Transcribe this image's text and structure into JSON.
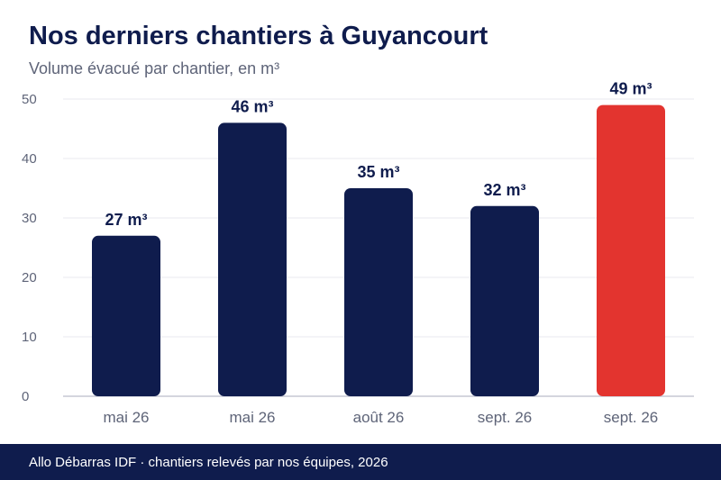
{
  "title": "Nos derniers chantiers à Guyancourt",
  "subtitle": "Volume évacué par chantier, en m³",
  "footer": "Allo Débarras IDF · chantiers relevés par nos équipes, 2026",
  "colors": {
    "primary": "#0f1c4d",
    "highlight": "#e3342f",
    "grid": "#e9e9ef",
    "axis": "#c5c7d4",
    "tick_text": "#5e6478"
  },
  "chart_data": {
    "type": "bar",
    "categories": [
      "mai 26",
      "mai 26",
      "août 26",
      "sept. 26",
      "sept. 26"
    ],
    "values": [
      27,
      46,
      35,
      32,
      49
    ],
    "value_labels": [
      "27 m³",
      "46 m³",
      "35 m³",
      "32 m³",
      "49 m³"
    ],
    "highlight_index": 4,
    "ylim": [
      0,
      50
    ],
    "yticks": [
      0,
      10,
      20,
      30,
      40,
      50
    ],
    "grid": true,
    "xlabel": "",
    "ylabel": ""
  }
}
